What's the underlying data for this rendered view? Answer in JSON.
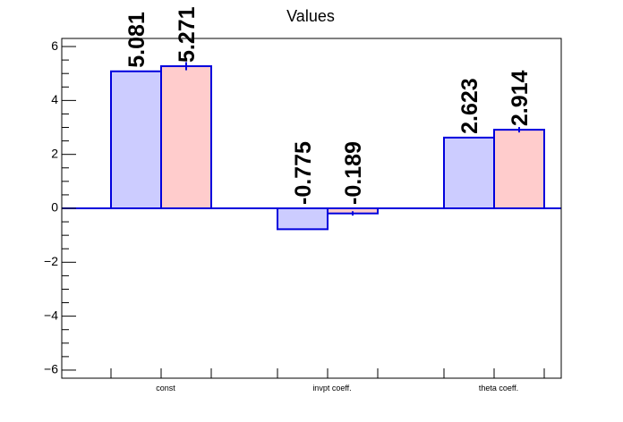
{
  "chart_data": {
    "type": "bar",
    "title": "Values",
    "categories": [
      "const",
      "invpt coeff.",
      "theta coeff."
    ],
    "series": [
      {
        "values": [
          5.081,
          -0.775,
          2.623
        ],
        "errors": [
          0,
          0,
          0
        ],
        "color": "#ccccff"
      },
      {
        "values": [
          5.271,
          -0.189,
          2.914
        ],
        "errors": [
          0.15,
          0.08,
          0.1
        ],
        "color": "#ffcccc"
      }
    ],
    "value_labels": [
      [
        "5.081",
        "-0.775",
        "2.623"
      ],
      [
        "5.271",
        "-0.189",
        "2.914"
      ]
    ],
    "ylim": [
      -6.3,
      6.3
    ],
    "yticks": [
      -6,
      -4,
      -2,
      0,
      2,
      4,
      6
    ],
    "ytick_labels": [
      "−6",
      "−4",
      "−2",
      "0",
      "2",
      "4",
      "6"
    ],
    "grid": false,
    "xlabel": "",
    "ylabel": "",
    "colors": {
      "bar_edge": "#0000dd",
      "zero_line": "#0000dd",
      "error_bar": "#0000dd"
    }
  }
}
